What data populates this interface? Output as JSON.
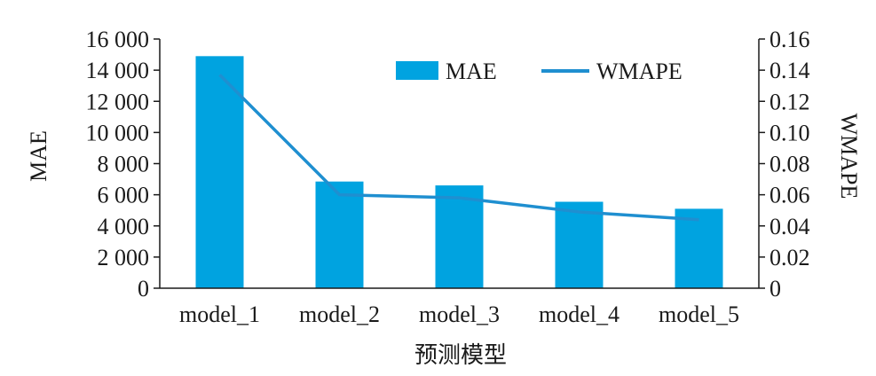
{
  "chart_data": {
    "type": "bar",
    "categories": [
      "model_1",
      "model_2",
      "model_3",
      "model_4",
      "model_5"
    ],
    "series": [
      {
        "name": "MAE",
        "type": "bar",
        "axis": "left",
        "values": [
          14900,
          6850,
          6600,
          5550,
          5100
        ]
      },
      {
        "name": "WMAPE",
        "type": "line",
        "axis": "right",
        "values": [
          0.137,
          0.06,
          0.058,
          0.049,
          0.044
        ]
      }
    ],
    "xlabel": "预测模型",
    "ylabel": "MAE",
    "y2label": "WMAPE",
    "ylim": [
      0,
      16000
    ],
    "y2lim": [
      0,
      0.16
    ],
    "yticks": [
      "0",
      "2 000",
      "4 000",
      "6 000",
      "8 000",
      "10 000",
      "12 000",
      "14 000",
      "16 000"
    ],
    "y2ticks": [
      "0",
      "0.02",
      "0.04",
      "0.06",
      "0.08",
      "0.10",
      "0.12",
      "0.14",
      "0.16"
    ],
    "legend": {
      "position": "top-right",
      "entries": [
        "MAE",
        "WMAPE"
      ]
    },
    "grid": false,
    "colors": {
      "bar": "#00a3e0",
      "line": "#1f8fd0",
      "axis": "#1a1a1a"
    }
  }
}
